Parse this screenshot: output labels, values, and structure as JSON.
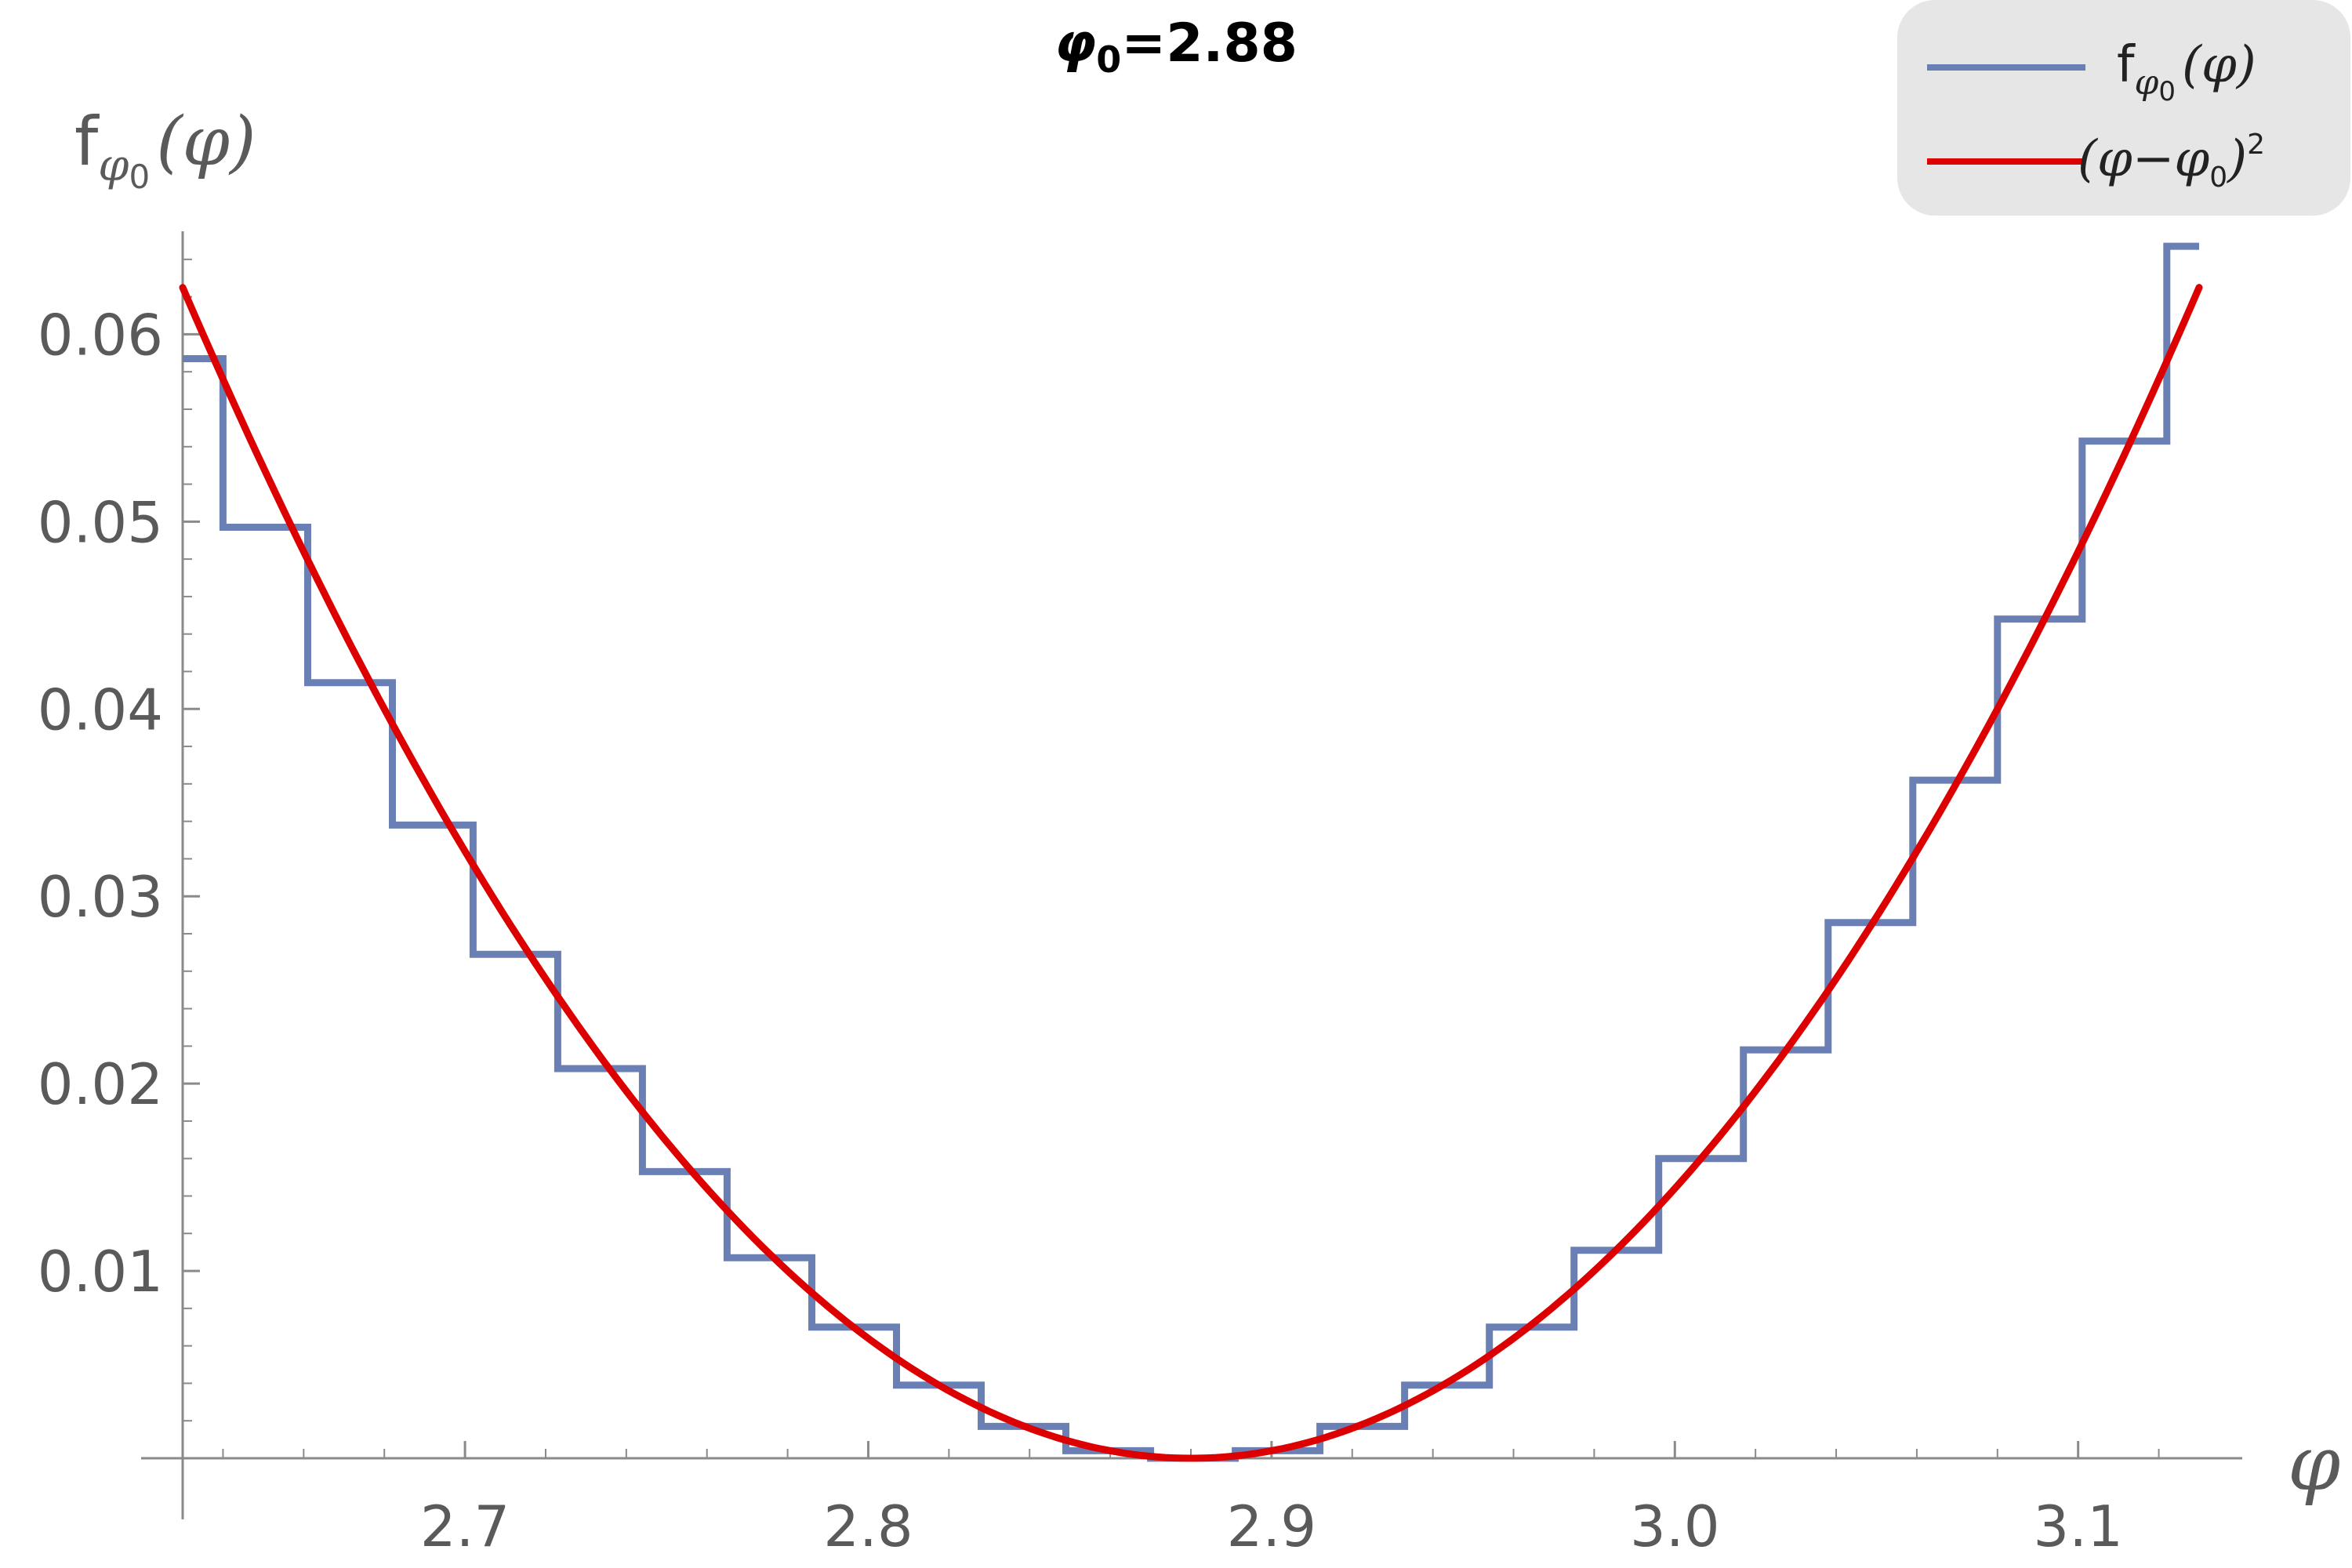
{
  "chart_data": {
    "type": "line",
    "title": {
      "symbol": "φ",
      "subscript": "0",
      "value": "=2.88"
    },
    "xlabel": "φ",
    "ylabel": {
      "base": "f",
      "sub_symbol": "φ",
      "sub_index": "0",
      "arg": "(φ)"
    },
    "xlim": [
      2.63,
      3.13
    ],
    "ylim": [
      0,
      0.0655
    ],
    "x_ticks": [
      {
        "value": 2.7,
        "label": "2.7"
      },
      {
        "value": 2.8,
        "label": "2.8"
      },
      {
        "value": 2.9,
        "label": "2.9"
      },
      {
        "value": 3.0,
        "label": "3.0"
      },
      {
        "value": 3.1,
        "label": "3.1"
      }
    ],
    "y_ticks": [
      {
        "value": 0.01,
        "label": "0.01"
      },
      {
        "value": 0.02,
        "label": "0.02"
      },
      {
        "value": 0.03,
        "label": "0.03"
      },
      {
        "value": 0.04,
        "label": "0.04"
      },
      {
        "value": 0.05,
        "label": "0.05"
      },
      {
        "value": 0.06,
        "label": "0.06"
      }
    ],
    "grid": false,
    "legend_position": "top-right",
    "series": [
      {
        "name": "fφ0(φ)",
        "legend_parts": {
          "base": "f",
          "sub_symbol": "φ",
          "sub_index": "0",
          "arg": "(φ)"
        },
        "kind": "step",
        "color": "#6a80b4",
        "steps": [
          {
            "x0": 2.63,
            "x1": 2.64,
            "y": 0.0587
          },
          {
            "x0": 2.64,
            "x1": 2.661,
            "y": 0.0497
          },
          {
            "x0": 2.661,
            "x1": 2.682,
            "y": 0.0414
          },
          {
            "x0": 2.682,
            "x1": 2.702,
            "y": 0.0338
          },
          {
            "x0": 2.702,
            "x1": 2.723,
            "y": 0.0269
          },
          {
            "x0": 2.723,
            "x1": 2.744,
            "y": 0.0208
          },
          {
            "x0": 2.744,
            "x1": 2.765,
            "y": 0.0153
          },
          {
            "x0": 2.765,
            "x1": 2.786,
            "y": 0.0107
          },
          {
            "x0": 2.786,
            "x1": 2.807,
            "y": 0.007
          },
          {
            "x0": 2.807,
            "x1": 2.828,
            "y": 0.0039
          },
          {
            "x0": 2.828,
            "x1": 2.849,
            "y": 0.0017
          },
          {
            "x0": 2.849,
            "x1": 2.87,
            "y": 0.0004
          },
          {
            "x0": 2.87,
            "x1": 2.891,
            "y": 0.0
          },
          {
            "x0": 2.891,
            "x1": 2.912,
            "y": 0.0004
          },
          {
            "x0": 2.912,
            "x1": 2.933,
            "y": 0.0017
          },
          {
            "x0": 2.933,
            "x1": 2.954,
            "y": 0.0039
          },
          {
            "x0": 2.954,
            "x1": 2.975,
            "y": 0.007
          },
          {
            "x0": 2.975,
            "x1": 2.996,
            "y": 0.0111
          },
          {
            "x0": 2.996,
            "x1": 3.017,
            "y": 0.016
          },
          {
            "x0": 3.017,
            "x1": 3.038,
            "y": 0.0218
          },
          {
            "x0": 3.038,
            "x1": 3.059,
            "y": 0.0286
          },
          {
            "x0": 3.059,
            "x1": 3.08,
            "y": 0.0362
          },
          {
            "x0": 3.08,
            "x1": 3.101,
            "y": 0.0448
          },
          {
            "x0": 3.101,
            "x1": 3.122,
            "y": 0.0543
          },
          {
            "x0": 3.122,
            "x1": 3.13,
            "y": 0.0647
          }
        ]
      },
      {
        "name": "(φ−φ0)2",
        "legend_parts": {
          "open": "(φ−φ",
          "sub_index": "0",
          "close": ")",
          "sup": "2"
        },
        "kind": "curve",
        "color": "#dd0000",
        "formula": "(x-2.88)^2",
        "phi0": 2.88,
        "x_range": [
          2.63,
          3.13
        ]
      }
    ]
  }
}
